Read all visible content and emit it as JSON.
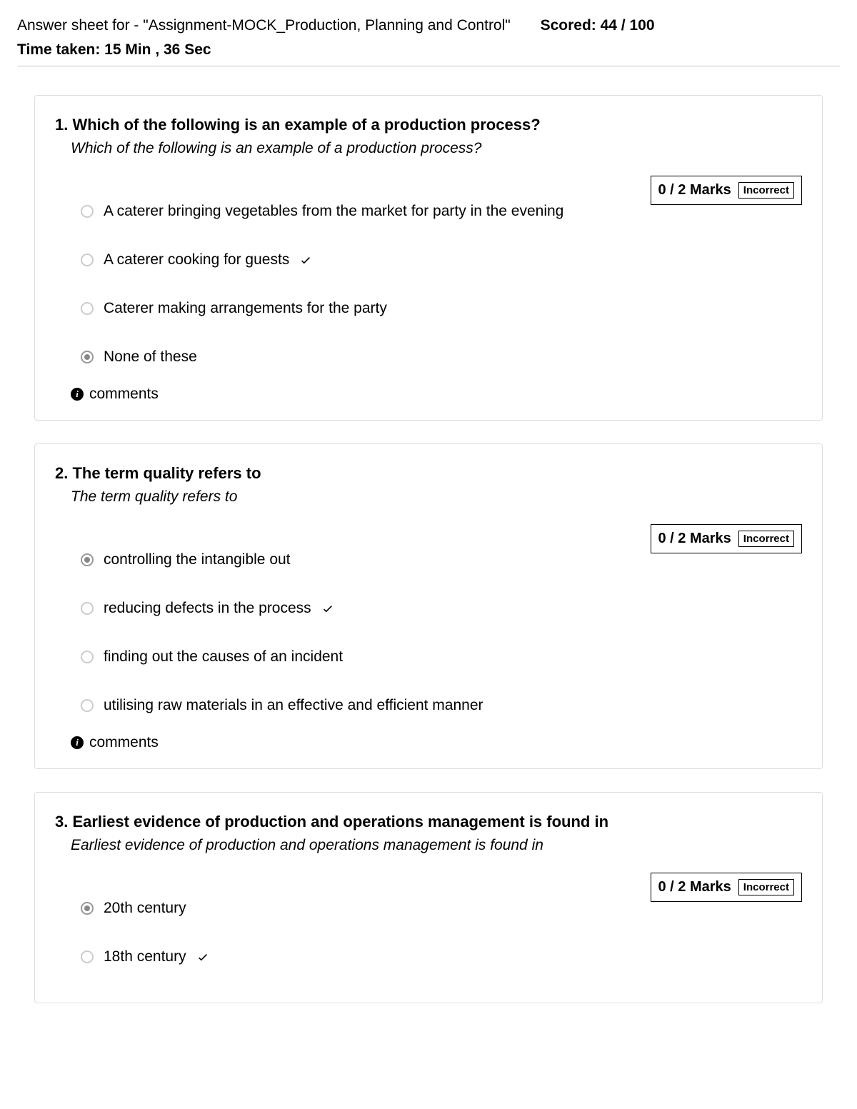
{
  "header": {
    "title_prefix": "Answer sheet for - ",
    "assignment_name": "\"Assignment-MOCK_Production, Planning and Control\"",
    "score_label": "Scored: 44 / 100",
    "time_label": "Time taken: 15 Min , 36 Sec"
  },
  "comments_label": "comments",
  "questions": [
    {
      "number": "1.",
      "title": "Which of the following is an example of a production process?",
      "subtitle": "Which of the following is an example of a production process?",
      "marks": "0 / 2 Marks",
      "result": "Incorrect",
      "options": [
        {
          "text": "A caterer bringing vegetables from the market for party in the evening",
          "selected": false,
          "correct": false
        },
        {
          "text": "A caterer cooking for guests",
          "selected": false,
          "correct": true
        },
        {
          "text": "Caterer making arrangements for the party",
          "selected": false,
          "correct": false
        },
        {
          "text": "None of these",
          "selected": true,
          "correct": false
        }
      ]
    },
    {
      "number": "2.",
      "title": "The term quality refers to",
      "subtitle": "The term quality refers to",
      "marks": "0 / 2 Marks",
      "result": "Incorrect",
      "options": [
        {
          "text": "controlling the intangible out",
          "selected": true,
          "correct": false
        },
        {
          "text": "reducing defects in the process",
          "selected": false,
          "correct": true
        },
        {
          "text": "finding out the causes of an incident",
          "selected": false,
          "correct": false
        },
        {
          "text": "utilising raw materials in an effective and efficient manner",
          "selected": false,
          "correct": false
        }
      ]
    },
    {
      "number": "3.",
      "title": "Earliest evidence of production and operations management is found in",
      "subtitle": "Earliest evidence of production and operations management is found in",
      "marks": "0 / 2 Marks",
      "result": "Incorrect",
      "options": [
        {
          "text": "20th century",
          "selected": true,
          "correct": false
        },
        {
          "text": "18th century",
          "selected": false,
          "correct": true
        }
      ]
    }
  ]
}
